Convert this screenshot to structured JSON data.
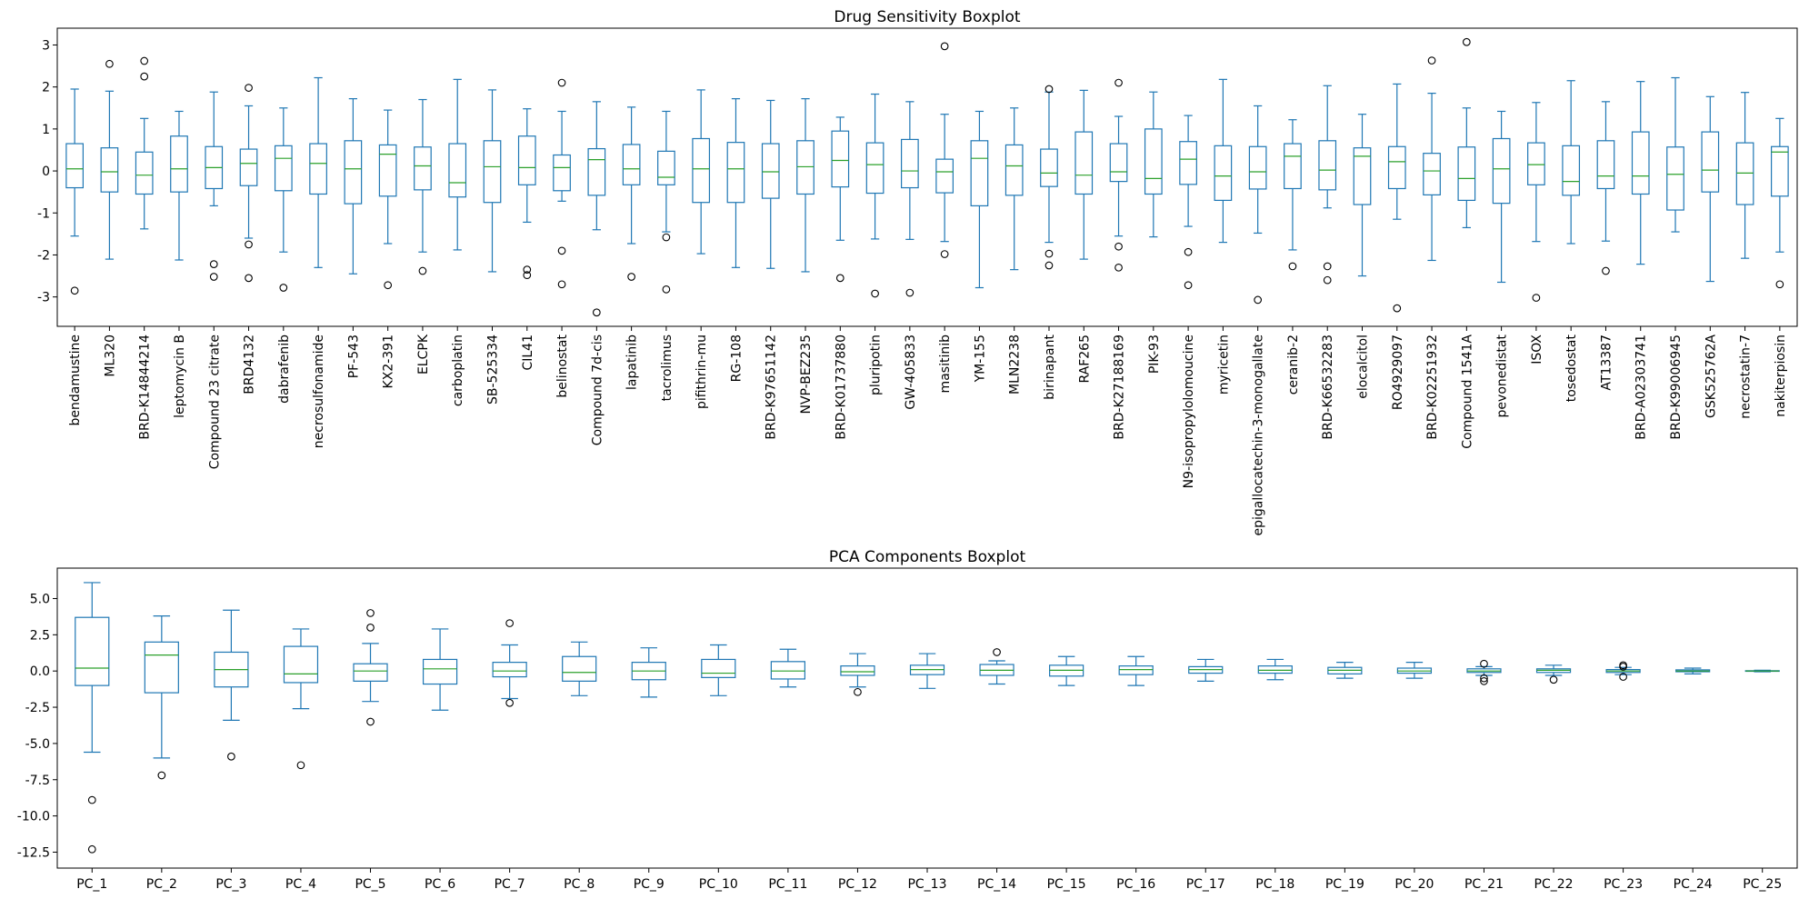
{
  "chart_data": [
    {
      "type": "boxplot",
      "title": "Drug Sensitivity Boxplot",
      "xlabel": "",
      "ylabel": "",
      "ylim": [
        -3.7,
        3.4
      ],
      "yticks": [
        -3,
        -2,
        -1,
        0,
        1,
        2,
        3
      ],
      "grid": false,
      "box_color": "#1f77b4",
      "median_color": "#2ca02c",
      "categories": [
        "bendamustine",
        "ML320",
        "BRD-K14844214",
        "leptomycin B",
        "Compound 23 citrate",
        "BRD4132",
        "dabrafenib",
        "necrosulfonamide",
        "PF-543",
        "KX2-391",
        "ELCPK",
        "carboplatin",
        "SB-525334",
        "CIL41",
        "belinostat",
        "Compound 7d-cis",
        "lapatinib",
        "tacrolimus",
        "pifithrin-mu",
        "RG-108",
        "BRD-K97651142",
        "NVP-BEZ235",
        "BRD-K01737880",
        "pluripotin",
        "GW-405833",
        "masitinib",
        "YM-155",
        "MLN2238",
        "birinapant",
        "RAF265",
        "BRD-K27188169",
        "PIK-93",
        "N9-isopropylolomoucine",
        "myricetin",
        "epigallocatechin-3-monogallate",
        "ceranib-2",
        "BRD-K66532283",
        "elocalcitol",
        "RO4929097",
        "BRD-K02251932",
        "Compound 1541A",
        "pevonedistat",
        "ISOX",
        "tosedostat",
        "AT13387",
        "BRD-A02303741",
        "BRD-K99006945",
        "GSK525762A",
        "necrostatin-7",
        "nakiterpiosin"
      ],
      "boxes": [
        {
          "wlo": -1.55,
          "q1": -0.4,
          "med": 0.05,
          "q3": 0.65,
          "whi": 1.95,
          "fliers": [
            -2.85
          ]
        },
        {
          "wlo": -2.1,
          "q1": -0.5,
          "med": -0.02,
          "q3": 0.55,
          "whi": 1.9,
          "fliers": [
            2.55
          ]
        },
        {
          "wlo": -1.38,
          "q1": -0.55,
          "med": -0.1,
          "q3": 0.45,
          "whi": 1.25,
          "fliers": [
            2.25,
            2.62
          ]
        },
        {
          "wlo": -2.12,
          "q1": -0.5,
          "med": 0.05,
          "q3": 0.83,
          "whi": 1.42,
          "fliers": []
        },
        {
          "wlo": -0.83,
          "q1": -0.42,
          "med": 0.08,
          "q3": 0.58,
          "whi": 1.88,
          "fliers": [
            -2.22,
            -2.52
          ]
        },
        {
          "wlo": -1.6,
          "q1": -0.35,
          "med": 0.18,
          "q3": 0.52,
          "whi": 1.55,
          "fliers": [
            1.98,
            -1.75,
            -2.55
          ]
        },
        {
          "wlo": -1.93,
          "q1": -0.47,
          "med": 0.3,
          "q3": 0.6,
          "whi": 1.5,
          "fliers": [
            -2.78
          ]
        },
        {
          "wlo": -2.3,
          "q1": -0.55,
          "med": 0.18,
          "q3": 0.65,
          "whi": 2.22,
          "fliers": []
        },
        {
          "wlo": -2.45,
          "q1": -0.78,
          "med": 0.05,
          "q3": 0.72,
          "whi": 1.72,
          "fliers": []
        },
        {
          "wlo": -1.73,
          "q1": -0.6,
          "med": 0.4,
          "q3": 0.62,
          "whi": 1.45,
          "fliers": [
            -2.72
          ]
        },
        {
          "wlo": -1.93,
          "q1": -0.45,
          "med": 0.12,
          "q3": 0.57,
          "whi": 1.7,
          "fliers": [
            -2.38
          ]
        },
        {
          "wlo": -1.88,
          "q1": -0.62,
          "med": -0.28,
          "q3": 0.65,
          "whi": 2.18,
          "fliers": []
        },
        {
          "wlo": -2.4,
          "q1": -0.75,
          "med": 0.1,
          "q3": 0.72,
          "whi": 1.93,
          "fliers": []
        },
        {
          "wlo": -1.22,
          "q1": -0.33,
          "med": 0.08,
          "q3": 0.83,
          "whi": 1.48,
          "fliers": [
            -2.35,
            -2.48
          ]
        },
        {
          "wlo": -0.72,
          "q1": -0.47,
          "med": 0.08,
          "q3": 0.38,
          "whi": 1.42,
          "fliers": [
            2.1,
            -1.9,
            -2.7
          ]
        },
        {
          "wlo": -1.4,
          "q1": -0.58,
          "med": 0.27,
          "q3": 0.53,
          "whi": 1.65,
          "fliers": [
            -3.37
          ]
        },
        {
          "wlo": -1.73,
          "q1": -0.33,
          "med": 0.05,
          "q3": 0.63,
          "whi": 1.52,
          "fliers": [
            -2.52
          ]
        },
        {
          "wlo": -1.45,
          "q1": -0.33,
          "med": -0.15,
          "q3": 0.47,
          "whi": 1.42,
          "fliers": [
            -1.58,
            -2.82
          ]
        },
        {
          "wlo": -1.97,
          "q1": -0.75,
          "med": 0.05,
          "q3": 0.77,
          "whi": 1.93,
          "fliers": []
        },
        {
          "wlo": -2.3,
          "q1": -0.75,
          "med": 0.05,
          "q3": 0.68,
          "whi": 1.72,
          "fliers": []
        },
        {
          "wlo": -2.32,
          "q1": -0.65,
          "med": -0.02,
          "q3": 0.65,
          "whi": 1.68,
          "fliers": []
        },
        {
          "wlo": -2.4,
          "q1": -0.55,
          "med": 0.1,
          "q3": 0.72,
          "whi": 1.72,
          "fliers": []
        },
        {
          "wlo": -1.65,
          "q1": -0.38,
          "med": 0.25,
          "q3": 0.95,
          "whi": 1.28,
          "fliers": [
            -2.55
          ]
        },
        {
          "wlo": -1.62,
          "q1": -0.53,
          "med": 0.15,
          "q3": 0.67,
          "whi": 1.83,
          "fliers": [
            -2.92
          ]
        },
        {
          "wlo": -1.63,
          "q1": -0.4,
          "med": 0.0,
          "q3": 0.75,
          "whi": 1.65,
          "fliers": [
            -2.9
          ]
        },
        {
          "wlo": -1.68,
          "q1": -0.52,
          "med": -0.02,
          "q3": 0.28,
          "whi": 1.35,
          "fliers": [
            2.97,
            -1.98
          ]
        },
        {
          "wlo": -2.78,
          "q1": -0.83,
          "med": 0.3,
          "q3": 0.72,
          "whi": 1.42,
          "fliers": []
        },
        {
          "wlo": -2.35,
          "q1": -0.58,
          "med": 0.12,
          "q3": 0.62,
          "whi": 1.5,
          "fliers": []
        },
        {
          "wlo": -1.7,
          "q1": -0.37,
          "med": -0.05,
          "q3": 0.52,
          "whi": 1.88,
          "fliers": [
            1.95,
            -1.97,
            -2.25
          ]
        },
        {
          "wlo": -2.1,
          "q1": -0.55,
          "med": -0.1,
          "q3": 0.93,
          "whi": 1.92,
          "fliers": []
        },
        {
          "wlo": -1.55,
          "q1": -0.25,
          "med": -0.02,
          "q3": 0.65,
          "whi": 1.3,
          "fliers": [
            2.1,
            -1.8,
            -2.3
          ]
        },
        {
          "wlo": -1.57,
          "q1": -0.55,
          "med": -0.18,
          "q3": 1.0,
          "whi": 1.88,
          "fliers": []
        },
        {
          "wlo": -1.32,
          "q1": -0.32,
          "med": 0.28,
          "q3": 0.7,
          "whi": 1.32,
          "fliers": [
            -1.93,
            -2.72
          ]
        },
        {
          "wlo": -1.7,
          "q1": -0.7,
          "med": -0.12,
          "q3": 0.6,
          "whi": 2.18,
          "fliers": []
        },
        {
          "wlo": -1.48,
          "q1": -0.43,
          "med": -0.02,
          "q3": 0.58,
          "whi": 1.55,
          "fliers": [
            -3.07
          ]
        },
        {
          "wlo": -1.88,
          "q1": -0.42,
          "med": 0.35,
          "q3": 0.65,
          "whi": 1.22,
          "fliers": [
            -2.27
          ]
        },
        {
          "wlo": -0.88,
          "q1": -0.45,
          "med": 0.02,
          "q3": 0.72,
          "whi": 2.03,
          "fliers": [
            -2.27,
            -2.6
          ]
        },
        {
          "wlo": -2.5,
          "q1": -0.8,
          "med": 0.35,
          "q3": 0.55,
          "whi": 1.35,
          "fliers": []
        },
        {
          "wlo": -1.15,
          "q1": -0.42,
          "med": 0.22,
          "q3": 0.58,
          "whi": 2.07,
          "fliers": [
            -3.27
          ]
        },
        {
          "wlo": -2.13,
          "q1": -0.57,
          "med": 0.0,
          "q3": 0.42,
          "whi": 1.85,
          "fliers": [
            2.63
          ]
        },
        {
          "wlo": -1.35,
          "q1": -0.7,
          "med": -0.18,
          "q3": 0.57,
          "whi": 1.5,
          "fliers": [
            3.07
          ]
        },
        {
          "wlo": -2.65,
          "q1": -0.77,
          "med": 0.05,
          "q3": 0.77,
          "whi": 1.42,
          "fliers": []
        },
        {
          "wlo": -1.68,
          "q1": -0.33,
          "med": 0.15,
          "q3": 0.67,
          "whi": 1.63,
          "fliers": [
            -3.02
          ]
        },
        {
          "wlo": -1.73,
          "q1": -0.58,
          "med": -0.25,
          "q3": 0.6,
          "whi": 2.15,
          "fliers": []
        },
        {
          "wlo": -1.67,
          "q1": -0.42,
          "med": -0.12,
          "q3": 0.72,
          "whi": 1.65,
          "fliers": [
            -2.38
          ]
        },
        {
          "wlo": -2.22,
          "q1": -0.55,
          "med": -0.12,
          "q3": 0.93,
          "whi": 2.13,
          "fliers": []
        },
        {
          "wlo": -1.45,
          "q1": -0.93,
          "med": -0.08,
          "q3": 0.57,
          "whi": 2.22,
          "fliers": []
        },
        {
          "wlo": -2.63,
          "q1": -0.5,
          "med": 0.02,
          "q3": 0.93,
          "whi": 1.77,
          "fliers": []
        },
        {
          "wlo": -2.08,
          "q1": -0.8,
          "med": -0.05,
          "q3": 0.67,
          "whi": 1.87,
          "fliers": []
        },
        {
          "wlo": -1.93,
          "q1": -0.6,
          "med": 0.45,
          "q3": 0.58,
          "whi": 1.25,
          "fliers": [
            -2.7
          ]
        }
      ]
    },
    {
      "type": "boxplot",
      "title": "PCA Components Boxplot",
      "xlabel": "",
      "ylabel": "",
      "ylim": [
        -13.6,
        7.1
      ],
      "yticks": [
        -12.5,
        -10.0,
        -7.5,
        -5.0,
        -2.5,
        0.0,
        2.5,
        5.0
      ],
      "grid": false,
      "box_color": "#1f77b4",
      "median_color": "#2ca02c",
      "categories": [
        "PC_1",
        "PC_2",
        "PC_3",
        "PC_4",
        "PC_5",
        "PC_6",
        "PC_7",
        "PC_8",
        "PC_9",
        "PC_10",
        "PC_11",
        "PC_12",
        "PC_13",
        "PC_14",
        "PC_15",
        "PC_16",
        "PC_17",
        "PC_18",
        "PC_19",
        "PC_20",
        "PC_21",
        "PC_22",
        "PC_23",
        "PC_24",
        "PC_25"
      ],
      "boxes": [
        {
          "wlo": -5.6,
          "q1": -1.0,
          "med": 0.2,
          "q3": 3.7,
          "whi": 6.1,
          "fliers": [
            -8.9,
            -12.3
          ]
        },
        {
          "wlo": -6.0,
          "q1": -1.5,
          "med": 1.1,
          "q3": 2.0,
          "whi": 3.8,
          "fliers": [
            -7.2
          ]
        },
        {
          "wlo": -3.4,
          "q1": -1.1,
          "med": 0.1,
          "q3": 1.3,
          "whi": 4.2,
          "fliers": [
            -5.9
          ]
        },
        {
          "wlo": -2.6,
          "q1": -0.8,
          "med": -0.2,
          "q3": 1.7,
          "whi": 2.9,
          "fliers": [
            -6.5
          ]
        },
        {
          "wlo": -2.1,
          "q1": -0.7,
          "med": 0.0,
          "q3": 0.5,
          "whi": 1.9,
          "fliers": [
            4.0,
            3.0,
            -3.5
          ]
        },
        {
          "wlo": -2.7,
          "q1": -0.9,
          "med": 0.15,
          "q3": 0.8,
          "whi": 2.9,
          "fliers": []
        },
        {
          "wlo": -1.9,
          "q1": -0.4,
          "med": 0.0,
          "q3": 0.6,
          "whi": 1.8,
          "fliers": [
            3.3,
            -2.2
          ]
        },
        {
          "wlo": -1.7,
          "q1": -0.7,
          "med": -0.1,
          "q3": 1.0,
          "whi": 2.0,
          "fliers": []
        },
        {
          "wlo": -1.8,
          "q1": -0.6,
          "med": 0.0,
          "q3": 0.6,
          "whi": 1.6,
          "fliers": []
        },
        {
          "wlo": -1.7,
          "q1": -0.45,
          "med": -0.15,
          "q3": 0.8,
          "whi": 1.8,
          "fliers": []
        },
        {
          "wlo": -1.1,
          "q1": -0.55,
          "med": 0.0,
          "q3": 0.65,
          "whi": 1.5,
          "fliers": []
        },
        {
          "wlo": -1.1,
          "q1": -0.3,
          "med": -0.05,
          "q3": 0.35,
          "whi": 1.2,
          "fliers": [
            -1.45
          ]
        },
        {
          "wlo": -1.2,
          "q1": -0.25,
          "med": 0.1,
          "q3": 0.4,
          "whi": 1.2,
          "fliers": []
        },
        {
          "wlo": -0.9,
          "q1": -0.3,
          "med": 0.05,
          "q3": 0.45,
          "whi": 0.7,
          "fliers": [
            1.3
          ]
        },
        {
          "wlo": -1.0,
          "q1": -0.35,
          "med": 0.05,
          "q3": 0.4,
          "whi": 1.0,
          "fliers": []
        },
        {
          "wlo": -1.0,
          "q1": -0.25,
          "med": 0.1,
          "q3": 0.35,
          "whi": 1.0,
          "fliers": []
        },
        {
          "wlo": -0.7,
          "q1": -0.15,
          "med": 0.1,
          "q3": 0.3,
          "whi": 0.8,
          "fliers": []
        },
        {
          "wlo": -0.6,
          "q1": -0.15,
          "med": 0.05,
          "q3": 0.35,
          "whi": 0.8,
          "fliers": []
        },
        {
          "wlo": -0.5,
          "q1": -0.2,
          "med": 0.05,
          "q3": 0.25,
          "whi": 0.6,
          "fliers": []
        },
        {
          "wlo": -0.5,
          "q1": -0.15,
          "med": 0.0,
          "q3": 0.2,
          "whi": 0.6,
          "fliers": []
        },
        {
          "wlo": -0.3,
          "q1": -0.1,
          "med": 0.0,
          "q3": 0.15,
          "whi": 0.3,
          "fliers": [
            0.5,
            -0.5,
            -0.7
          ]
        },
        {
          "wlo": -0.3,
          "q1": -0.1,
          "med": 0.05,
          "q3": 0.15,
          "whi": 0.4,
          "fliers": [
            -0.6
          ]
        },
        {
          "wlo": -0.25,
          "q1": -0.1,
          "med": 0.0,
          "q3": 0.1,
          "whi": 0.25,
          "fliers": [
            0.4,
            0.3,
            -0.4
          ]
        },
        {
          "wlo": -0.2,
          "q1": -0.05,
          "med": 0.0,
          "q3": 0.08,
          "whi": 0.2,
          "fliers": []
        },
        {
          "wlo": -0.05,
          "q1": -0.02,
          "med": 0.0,
          "q3": 0.02,
          "whi": 0.05,
          "fliers": []
        }
      ]
    }
  ]
}
